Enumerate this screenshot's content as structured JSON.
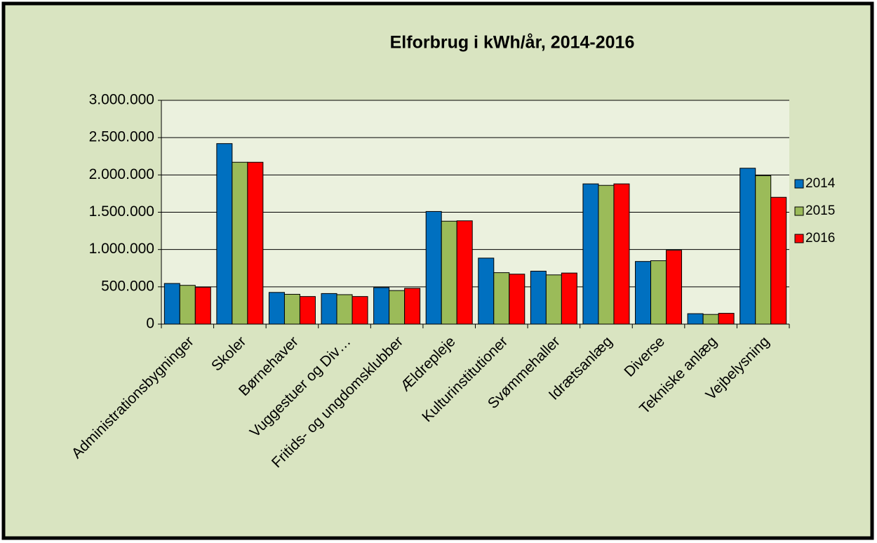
{
  "chart_data": {
    "type": "bar",
    "title": "Elforbrug i kWh/år, 2014-2016",
    "categories": [
      "Administrationsbygninger",
      "Skoler",
      "Børnehaver",
      "Vuggestuer og Div…",
      "Fritids- og ungdomsklubber",
      "Ældrepleje",
      "Kulturinstitutioner",
      "Svømmehaller",
      "Idrætsanlæg",
      "Diverse",
      "Tekniske anlæg",
      "Vejbelysning"
    ],
    "series": [
      {
        "name": "2014",
        "color": "#0070c0",
        "values": [
          545000,
          2420000,
          425000,
          410000,
          490000,
          1510000,
          885000,
          710000,
          1880000,
          840000,
          140000,
          2090000
        ]
      },
      {
        "name": "2015",
        "color": "#9bbb59",
        "values": [
          520000,
          2170000,
          400000,
          395000,
          450000,
          1380000,
          690000,
          660000,
          1860000,
          850000,
          130000,
          1990000
        ]
      },
      {
        "name": "2016",
        "color": "#ff0000",
        "values": [
          495000,
          2170000,
          370000,
          370000,
          480000,
          1385000,
          670000,
          685000,
          1880000,
          990000,
          145000,
          1700000
        ]
      }
    ],
    "ylim": [
      0,
      3000000
    ],
    "yticks": [
      0,
      {
        "value": 500000,
        "label": "500.000"
      },
      {
        "value": 1000000,
        "label": "1.000.000"
      },
      {
        "value": 1500000,
        "label": "1.500.000"
      },
      {
        "value": 2000000,
        "label": "2.000.000"
      },
      {
        "value": 2500000,
        "label": "2.500.000"
      },
      {
        "value": 3000000,
        "label": "3.000.000"
      }
    ],
    "grid": true,
    "legend": "right"
  }
}
